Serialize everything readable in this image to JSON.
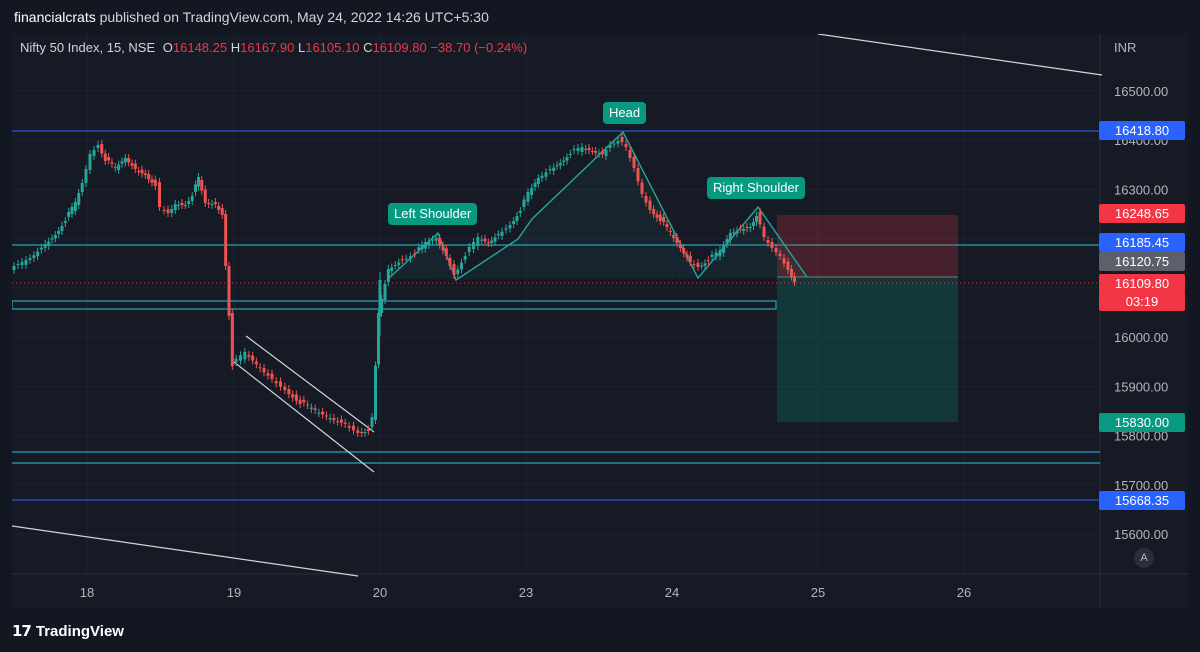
{
  "header": {
    "author": "financialcrats",
    "published_text": "published on TradingView.com, May 24, 2022 14:26 UTC+5:30"
  },
  "legend": {
    "symbol": "Nifty 50 Index, 15, NSE",
    "o_label": "O",
    "o_value": "16148.25",
    "h_label": "H",
    "h_value": "16167.90",
    "l_label": "L",
    "l_value": "16105.10",
    "c_label": "C",
    "c_value": "16109.80",
    "change": "−38.70 (−0.24%)"
  },
  "currency": "INR",
  "price_axis": [
    "16500.00",
    "16400.00",
    "16300.00",
    "16000.00",
    "15900.00",
    "15800.00",
    "15700.00",
    "15600.00"
  ],
  "price_tags": {
    "resistance": "16418.80",
    "stop": "16248.65",
    "neckline": "16185.45",
    "entry": "16120.75",
    "last": "16109.80",
    "countdown": "03:19",
    "target": "15830.00",
    "support": "15668.35"
  },
  "time_axis": [
    "18",
    "19",
    "20",
    "23",
    "24",
    "25",
    "26"
  ],
  "pattern_labels": {
    "left_shoulder": "Left Shoulder",
    "head": "Head",
    "right_shoulder": "Right Shoulder"
  },
  "auto_button": "A",
  "footer": {
    "brand": "TradingView",
    "logo_mark": "17"
  },
  "colors": {
    "bull": "#26a69a",
    "bear": "#ef5350",
    "blue_line": "#2962ff",
    "cyan_line": "#26c6da",
    "label_green": "#089981"
  }
}
